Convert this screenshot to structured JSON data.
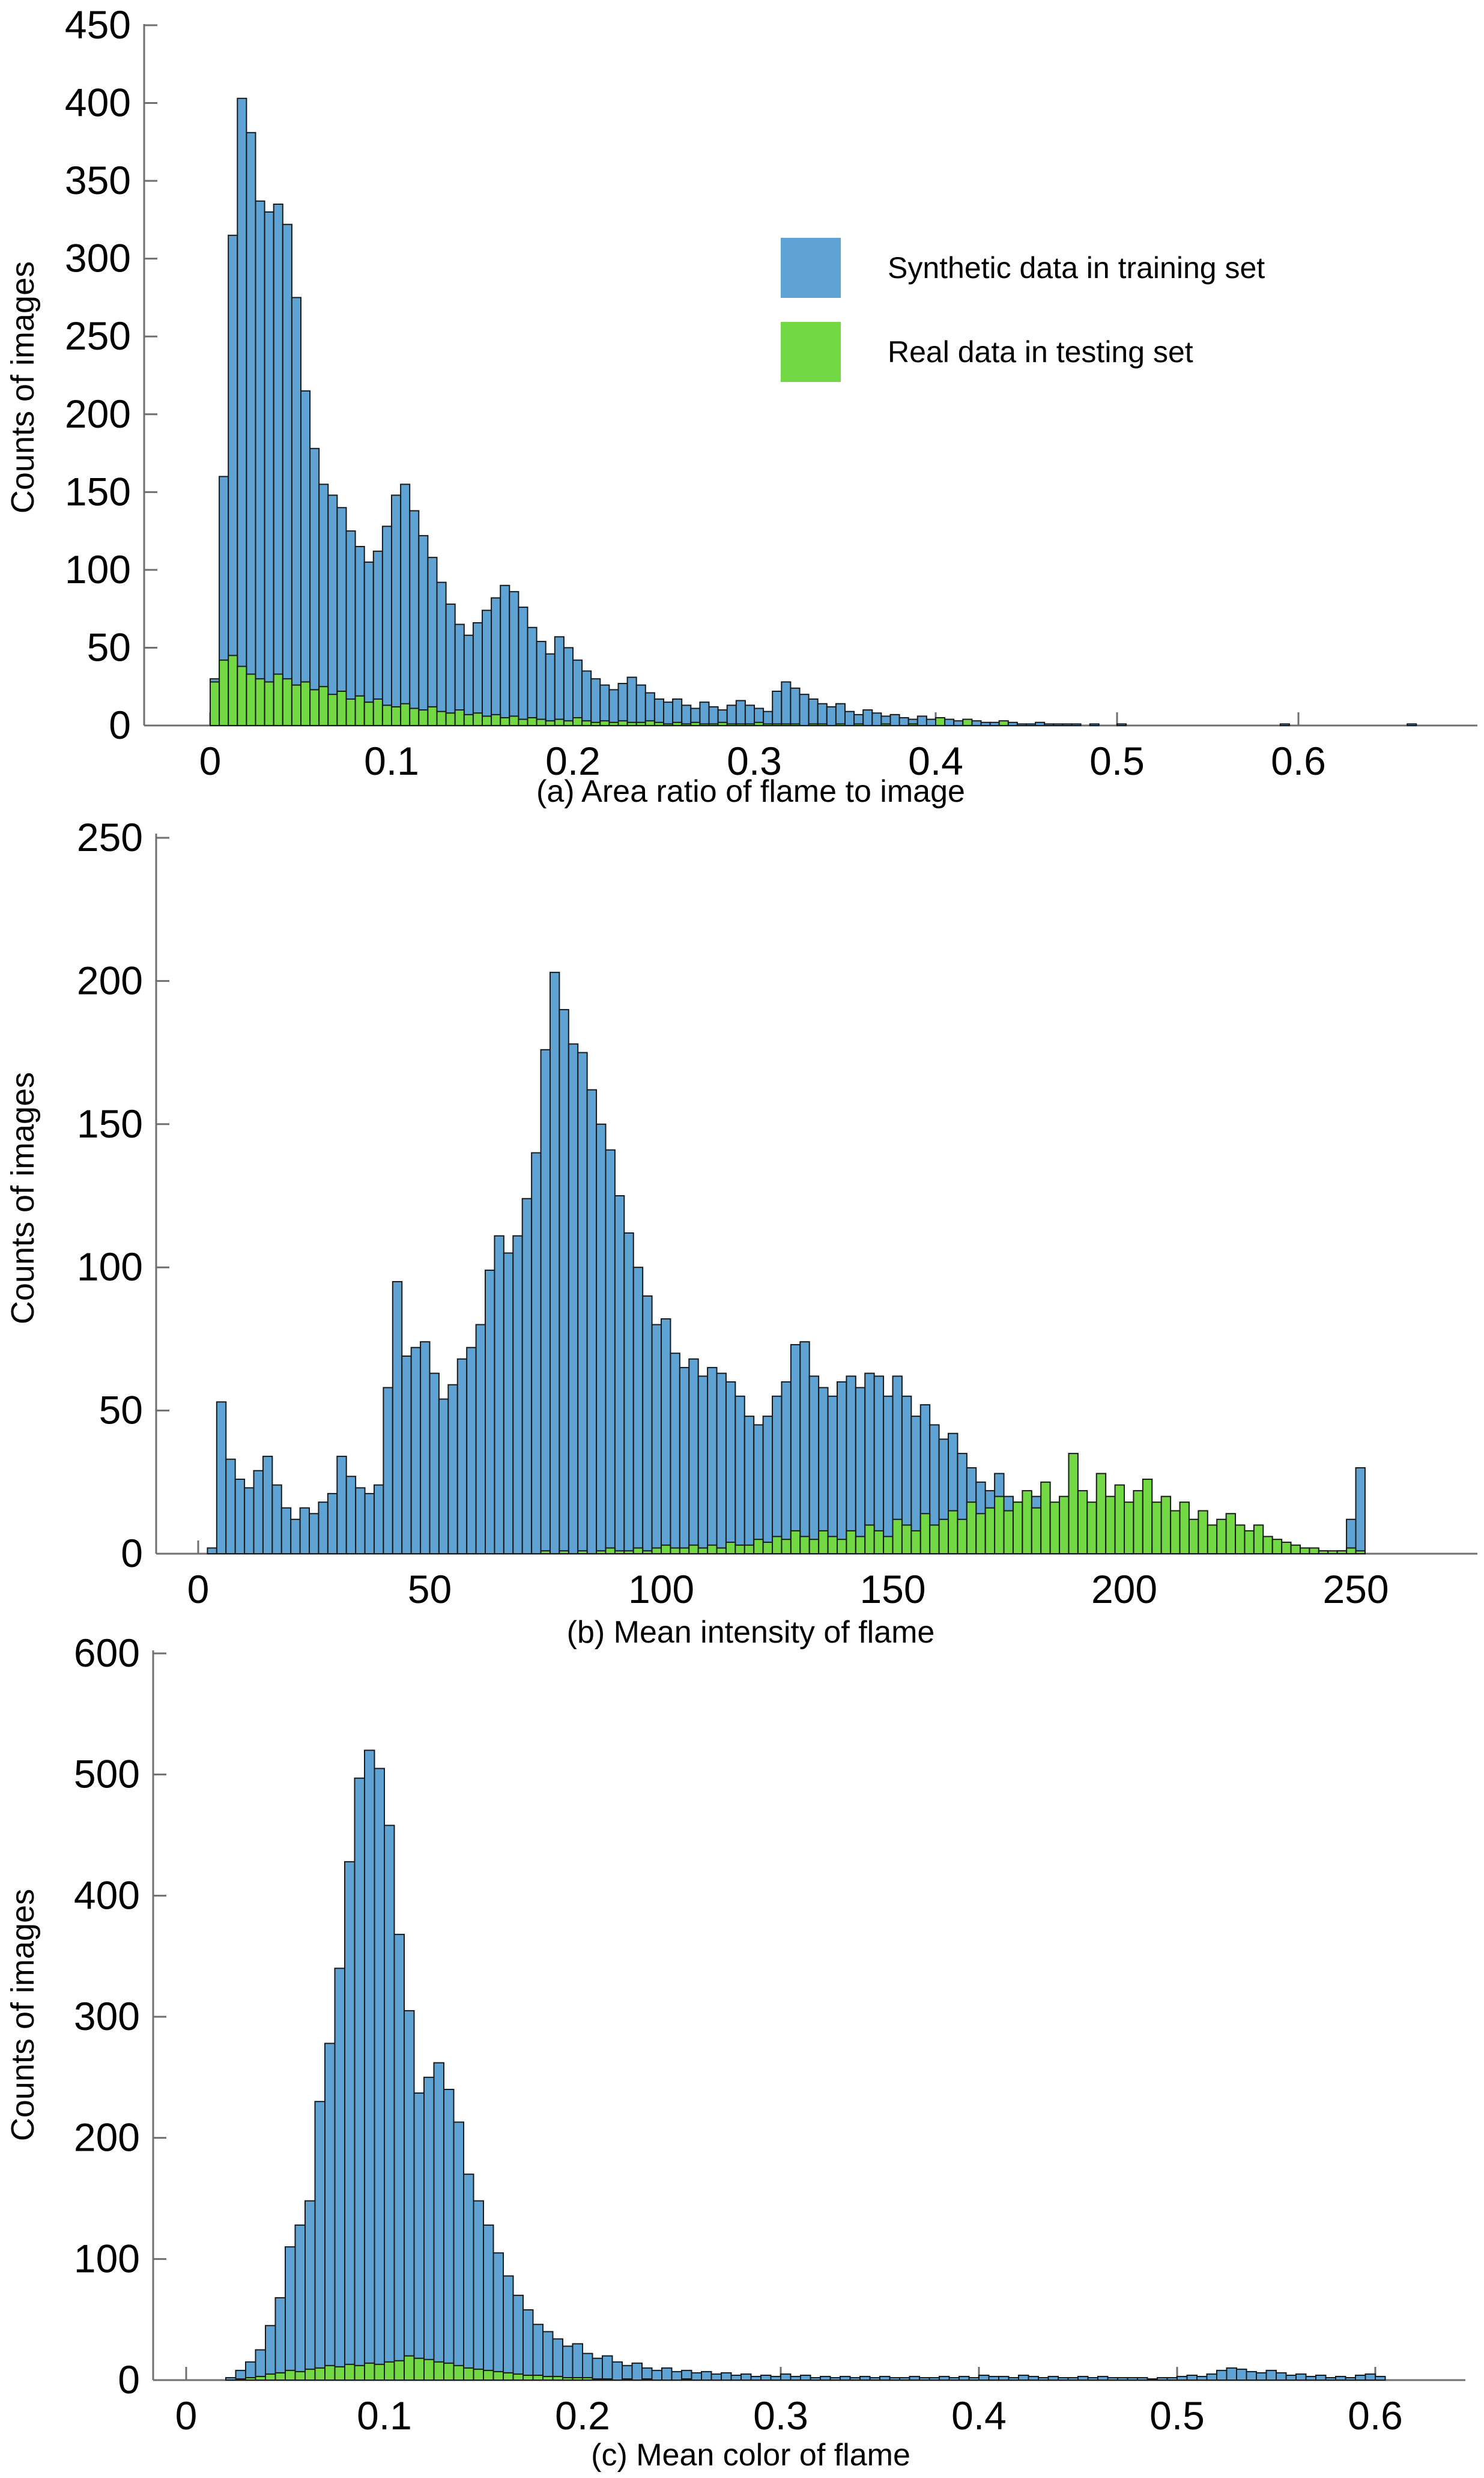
{
  "figure": {
    "background": "#ffffff",
    "axis_color": "#6f6f6f",
    "bar_outline_color": "#1a1a1a"
  },
  "legend": {
    "position": "top-right-of-panel-a",
    "items": [
      {
        "label": "Synthetic data in training set",
        "color": "#5fa3d4"
      },
      {
        "label": "Real data in testing set",
        "color": "#72d843"
      }
    ]
  },
  "chart_data": [
    {
      "id": "a",
      "type": "bar",
      "title": "(a) Area ratio of flame to image",
      "ylabel": "Counts of images",
      "xlabel": "",
      "xlim": [
        -0.036,
        0.699
      ],
      "ylim": [
        0,
        450
      ],
      "grid": false,
      "yticks": [
        0,
        50,
        100,
        150,
        200,
        250,
        300,
        350,
        400,
        450
      ],
      "ytick_labels": [
        "0",
        "50",
        "100",
        "150",
        "200",
        "250",
        "300",
        "350",
        "400",
        "450"
      ],
      "xticks": [
        0,
        0.1,
        0.2,
        0.3,
        0.4,
        0.5,
        0.6
      ],
      "xtick_labels": [
        "0",
        "0.1",
        "0.2",
        "0.3",
        "0.4",
        "0.5",
        "0.6"
      ],
      "bin_start": 0,
      "bin_width": 0.005,
      "series": [
        {
          "key": "synthetic",
          "name": "Synthetic data in training set",
          "color": "#5fa3d4",
          "values": [
            30,
            160,
            315,
            403,
            381,
            337,
            330,
            335,
            322,
            275,
            215,
            178,
            155,
            148,
            140,
            125,
            115,
            105,
            112,
            128,
            148,
            155,
            138,
            122,
            108,
            92,
            78,
            65,
            58,
            66,
            74,
            82,
            90,
            86,
            76,
            63,
            54,
            46,
            57,
            50,
            42,
            35,
            30,
            26,
            23,
            27,
            31,
            26,
            21,
            17,
            15,
            17,
            13,
            11,
            15,
            12,
            10,
            13,
            16,
            13,
            11,
            9,
            22,
            28,
            24,
            20,
            17,
            14,
            12,
            14,
            9,
            7,
            10,
            8,
            6,
            7,
            5,
            4,
            6,
            4,
            3,
            4,
            3,
            2,
            3,
            2,
            2,
            1,
            2,
            1,
            1,
            2,
            1,
            1,
            1,
            1,
            0,
            1,
            0,
            0,
            1,
            0,
            0,
            0,
            0,
            0,
            0,
            0,
            0,
            0,
            0,
            0,
            0,
            0,
            0,
            0,
            0,
            0,
            1,
            0,
            0,
            0,
            0,
            0,
            0,
            0,
            0,
            0,
            0,
            0,
            0,
            0,
            1,
            0
          ]
        },
        {
          "key": "real",
          "name": "Real data in testing set",
          "color": "#72d843",
          "values": [
            28,
            42,
            45,
            38,
            33,
            30,
            28,
            33,
            30,
            26,
            28,
            23,
            25,
            20,
            22,
            17,
            19,
            15,
            17,
            13,
            12,
            14,
            11,
            10,
            12,
            9,
            8,
            10,
            7,
            8,
            6,
            7,
            5,
            6,
            4,
            5,
            4,
            3,
            4,
            3,
            5,
            3,
            2,
            3,
            2,
            3,
            2,
            2,
            3,
            2,
            1,
            2,
            1,
            2,
            1,
            1,
            2,
            1,
            1,
            1,
            2,
            1,
            1,
            1,
            1,
            0,
            1,
            1,
            0,
            1,
            0,
            1,
            0,
            0,
            1,
            0,
            0,
            1,
            0,
            0,
            5,
            0,
            0,
            4,
            0,
            0,
            0,
            3,
            0,
            0,
            0,
            0,
            0,
            0,
            0,
            0,
            0,
            0,
            0,
            0,
            0,
            0,
            0,
            0,
            0,
            0,
            0,
            0,
            0,
            0,
            0,
            0,
            0,
            0,
            0,
            0,
            0,
            0,
            0,
            0,
            0,
            0,
            0,
            0,
            0,
            0,
            0,
            0,
            0,
            0,
            0,
            0,
            0,
            0
          ]
        }
      ]
    },
    {
      "id": "b",
      "type": "bar",
      "title": "(b) Mean intensity of flame",
      "ylabel": "Counts of images",
      "xlabel": "",
      "xlim": [
        -9.1,
        276.3
      ],
      "ylim": [
        0,
        250
      ],
      "grid": false,
      "yticks": [
        0,
        50,
        100,
        150,
        200,
        250
      ],
      "ytick_labels": [
        "0",
        "50",
        "100",
        "150",
        "200",
        "250"
      ],
      "xticks": [
        0,
        50,
        100,
        150,
        200,
        250
      ],
      "xtick_labels": [
        "0",
        "50",
        "100",
        "150",
        "200",
        "250"
      ],
      "bin_start": 0,
      "bin_width": 2,
      "series": [
        {
          "key": "synthetic",
          "name": "Synthetic data in training set",
          "color": "#5fa3d4",
          "values": [
            0,
            2,
            53,
            33,
            26,
            23,
            29,
            34,
            24,
            16,
            12,
            16,
            14,
            18,
            21,
            34,
            27,
            23,
            21,
            24,
            58,
            95,
            69,
            72,
            74,
            63,
            54,
            59,
            68,
            72,
            80,
            99,
            111,
            105,
            111,
            124,
            140,
            176,
            203,
            190,
            178,
            175,
            162,
            150,
            141,
            125,
            112,
            100,
            90,
            80,
            82,
            70,
            65,
            68,
            62,
            65,
            63,
            60,
            55,
            48,
            45,
            48,
            55,
            60,
            73,
            74,
            62,
            58,
            55,
            60,
            62,
            58,
            63,
            62,
            55,
            62,
            55,
            48,
            52,
            45,
            40,
            42,
            35,
            30,
            25,
            22,
            28,
            20,
            18,
            15,
            20,
            12,
            15,
            10,
            12,
            8,
            14,
            10,
            8,
            12,
            15,
            10,
            8,
            12,
            6,
            8,
            5,
            10,
            6,
            5,
            8,
            4,
            5,
            3,
            4,
            3,
            2,
            3,
            2,
            2,
            1,
            1,
            0,
            1,
            12,
            30
          ]
        },
        {
          "key": "real",
          "name": "Real data in testing set",
          "color": "#72d843",
          "values": [
            0,
            0,
            0,
            0,
            0,
            0,
            0,
            0,
            0,
            0,
            0,
            0,
            0,
            0,
            0,
            0,
            0,
            0,
            0,
            0,
            0,
            0,
            0,
            0,
            0,
            0,
            0,
            0,
            0,
            0,
            0,
            0,
            0,
            0,
            0,
            0,
            0,
            1,
            0,
            1,
            0,
            1,
            0,
            1,
            2,
            1,
            1,
            2,
            1,
            2,
            3,
            2,
            2,
            3,
            2,
            3,
            2,
            4,
            3,
            3,
            5,
            4,
            6,
            5,
            8,
            6,
            5,
            8,
            6,
            5,
            8,
            6,
            10,
            8,
            6,
            12,
            10,
            8,
            14,
            10,
            12,
            15,
            12,
            18,
            14,
            16,
            20,
            15,
            18,
            22,
            16,
            25,
            18,
            20,
            35,
            22,
            18,
            28,
            20,
            24,
            18,
            22,
            26,
            18,
            20,
            15,
            18,
            12,
            15,
            10,
            12,
            14,
            10,
            8,
            10,
            6,
            5,
            4,
            3,
            2,
            2,
            1,
            1,
            1,
            2,
            1
          ]
        }
      ]
    },
    {
      "id": "c",
      "type": "bar",
      "title": "(c) Mean color of flame",
      "ylabel": "Counts of images",
      "xlabel": "",
      "xlim": [
        -0.017,
        0.645
      ],
      "ylim": [
        0,
        600
      ],
      "grid": false,
      "yticks": [
        0,
        100,
        200,
        300,
        400,
        500,
        600
      ],
      "ytick_labels": [
        "0",
        "100",
        "200",
        "300",
        "400",
        "500",
        "600"
      ],
      "xticks": [
        0,
        0.1,
        0.2,
        0.3,
        0.4,
        0.5,
        0.6
      ],
      "xtick_labels": [
        "0",
        "0.1",
        "0.2",
        "0.3",
        "0.4",
        "0.5",
        "0.6"
      ],
      "bin_start": 0,
      "bin_width": 0.005,
      "series": [
        {
          "key": "synthetic",
          "name": "Synthetic data in training set",
          "color": "#5fa3d4",
          "values": [
            0,
            0,
            0,
            0,
            2,
            8,
            15,
            25,
            45,
            68,
            110,
            128,
            148,
            230,
            278,
            340,
            428,
            497,
            520,
            505,
            458,
            368,
            305,
            237,
            250,
            262,
            240,
            213,
            170,
            148,
            128,
            105,
            86,
            70,
            58,
            46,
            40,
            34,
            28,
            30,
            22,
            18,
            20,
            15,
            12,
            14,
            10,
            8,
            10,
            7,
            8,
            6,
            7,
            5,
            6,
            4,
            5,
            3,
            4,
            3,
            5,
            3,
            4,
            2,
            3,
            2,
            3,
            2,
            3,
            2,
            3,
            2,
            2,
            3,
            2,
            2,
            3,
            2,
            3,
            2,
            4,
            3,
            3,
            2,
            4,
            3,
            2,
            3,
            2,
            2,
            3,
            2,
            3,
            2,
            2,
            2,
            2,
            1,
            2,
            2,
            3,
            4,
            3,
            5,
            8,
            10,
            9,
            7,
            6,
            8,
            6,
            4,
            5,
            3,
            4,
            2,
            3,
            2,
            4,
            5,
            3,
            0,
            0,
            0
          ]
        },
        {
          "key": "real",
          "name": "Real data in testing set",
          "color": "#72d843",
          "values": [
            0,
            0,
            0,
            0,
            0,
            1,
            2,
            3,
            5,
            6,
            8,
            7,
            9,
            10,
            12,
            11,
            13,
            12,
            14,
            13,
            15,
            16,
            20,
            18,
            17,
            15,
            14,
            12,
            10,
            9,
            8,
            7,
            6,
            5,
            4,
            4,
            3,
            3,
            2,
            2,
            2,
            1,
            1,
            0,
            1,
            0,
            1,
            0,
            0,
            0,
            1,
            0,
            0,
            0,
            0,
            0,
            0,
            0,
            0,
            0,
            0,
            0,
            0,
            0,
            0,
            0,
            0,
            0,
            0,
            0,
            0,
            0,
            0,
            0,
            0,
            0,
            0,
            0,
            0,
            0,
            0,
            0,
            0,
            0,
            0,
            0,
            0,
            0,
            0,
            0,
            0,
            0,
            0,
            0,
            0,
            0,
            0,
            0,
            0,
            0,
            0,
            0,
            0,
            0,
            0,
            0,
            0,
            0,
            0,
            0,
            0,
            0,
            0,
            0,
            0,
            0,
            0,
            0,
            0,
            0,
            0,
            0,
            0,
            0
          ]
        }
      ]
    }
  ]
}
